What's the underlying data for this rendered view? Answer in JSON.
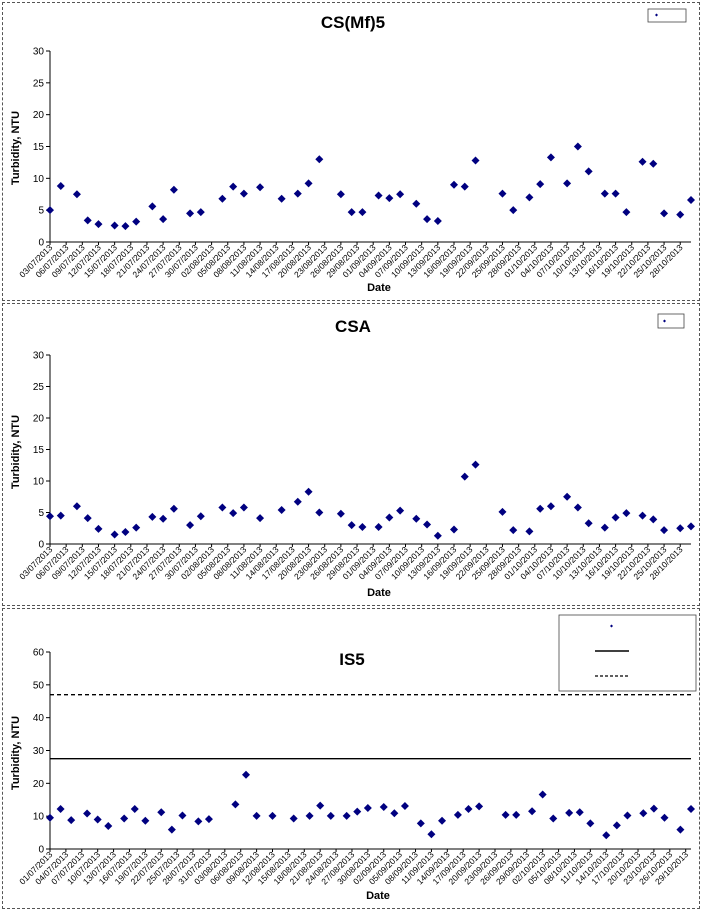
{
  "chart_data": [
    {
      "type": "scatter",
      "title": "CS(Mf)5",
      "xlabel": "Date",
      "ylabel": "Turbidity, NTU",
      "ylim": [
        0,
        30
      ],
      "yticks": [
        0,
        5,
        10,
        15,
        20,
        25,
        30
      ],
      "x_range": [
        "03/07/2013",
        "30/10/2013"
      ],
      "x_tick_labels": [
        "03/07/2013",
        "06/07/2013",
        "09/07/2013",
        "12/07/2013",
        "15/07/2013",
        "18/07/2013",
        "21/07/2013",
        "24/07/2013",
        "27/07/2013",
        "30/07/2013",
        "02/08/2013",
        "05/08/2013",
        "08/08/2013",
        "11/08/2013",
        "14/08/2013",
        "17/08/2013",
        "20/08/2013",
        "23/08/2013",
        "26/08/2013",
        "29/08/2013",
        "01/09/2013",
        "04/09/2013",
        "07/09/2013",
        "10/09/2013",
        "13/09/2013",
        "16/09/2013",
        "19/09/2013",
        "22/09/2013",
        "25/09/2013",
        "28/09/2013",
        "01/10/2013",
        "04/10/2013",
        "07/10/2013",
        "10/10/2013",
        "13/10/2013",
        "16/10/2013",
        "19/10/2013",
        "22/10/2013",
        "25/10/2013",
        "28/10/2013"
      ],
      "legend_position": "top-right",
      "grid": false,
      "marker_color": "#000080",
      "series": [
        {
          "marker": "diamond",
          "points": [
            [
              "03/07/2013",
              5.0
            ],
            [
              "05/07/2013",
              8.8
            ],
            [
              "08/07/2013",
              7.5
            ],
            [
              "10/07/2013",
              3.4
            ],
            [
              "12/07/2013",
              2.8
            ],
            [
              "15/07/2013",
              2.6
            ],
            [
              "17/07/2013",
              2.5
            ],
            [
              "19/07/2013",
              3.2
            ],
            [
              "22/07/2013",
              5.6
            ],
            [
              "24/07/2013",
              3.6
            ],
            [
              "26/07/2013",
              8.2
            ],
            [
              "29/07/2013",
              4.5
            ],
            [
              "31/07/2013",
              4.7
            ],
            [
              "04/08/2013",
              6.8
            ],
            [
              "06/08/2013",
              8.7
            ],
            [
              "08/08/2013",
              7.6
            ],
            [
              "11/08/2013",
              8.6
            ],
            [
              "15/08/2013",
              6.8
            ],
            [
              "18/08/2013",
              7.6
            ],
            [
              "20/08/2013",
              9.2
            ],
            [
              "22/08/2013",
              13.0
            ],
            [
              "26/08/2013",
              7.5
            ],
            [
              "28/08/2013",
              4.7
            ],
            [
              "30/08/2013",
              4.7
            ],
            [
              "02/09/2013",
              7.3
            ],
            [
              "04/09/2013",
              6.9
            ],
            [
              "06/09/2013",
              7.5
            ],
            [
              "09/09/2013",
              6.0
            ],
            [
              "11/09/2013",
              3.6
            ],
            [
              "13/09/2013",
              3.3
            ],
            [
              "16/09/2013",
              9.0
            ],
            [
              "18/09/2013",
              8.7
            ],
            [
              "20/09/2013",
              12.8
            ],
            [
              "25/09/2013",
              7.6
            ],
            [
              "27/09/2013",
              5.0
            ],
            [
              "30/09/2013",
              7.0
            ],
            [
              "02/10/2013",
              9.1
            ],
            [
              "04/10/2013",
              13.3
            ],
            [
              "07/10/2013",
              9.2
            ],
            [
              "09/10/2013",
              15.0
            ],
            [
              "11/10/2013",
              11.1
            ],
            [
              "14/10/2013",
              7.6
            ],
            [
              "16/10/2013",
              7.6
            ],
            [
              "18/10/2013",
              4.7
            ],
            [
              "21/10/2013",
              12.6
            ],
            [
              "23/10/2013",
              12.3
            ],
            [
              "25/10/2013",
              4.5
            ],
            [
              "28/10/2013",
              4.3
            ],
            [
              "30/10/2013",
              6.6
            ]
          ]
        }
      ]
    },
    {
      "type": "scatter",
      "title": "CSA",
      "xlabel": "Date",
      "ylabel": "Turbidity, NTU",
      "ylim": [
        0,
        30
      ],
      "yticks": [
        0,
        5,
        10,
        15,
        20,
        25,
        30
      ],
      "x_range": [
        "03/07/2013",
        "30/10/2013"
      ],
      "x_tick_labels": [
        "03/07/2013",
        "06/07/2013",
        "09/07/2013",
        "12/07/2013",
        "15/07/2013",
        "18/07/2013",
        "21/07/2013",
        "24/07/2013",
        "27/07/2013",
        "30/07/2013",
        "02/08/2013",
        "05/08/2013",
        "08/08/2013",
        "11/08/2013",
        "14/08/2013",
        "17/08/2013",
        "20/08/2013",
        "23/08/2013",
        "26/08/2013",
        "29/08/2013",
        "01/09/2013",
        "04/09/2013",
        "07/09/2013",
        "10/09/2013",
        "13/09/2013",
        "16/09/2013",
        "19/09/2013",
        "22/09/2013",
        "25/09/2013",
        "28/09/2013",
        "01/10/2013",
        "04/10/2013",
        "07/10/2013",
        "10/10/2013",
        "13/10/2013",
        "16/10/2013",
        "19/10/2013",
        "22/10/2013",
        "25/10/2013",
        "28/10/2013"
      ],
      "legend_position": "top-right",
      "grid": false,
      "marker_color": "#000080",
      "series": [
        {
          "marker": "diamond",
          "points": [
            [
              "03/07/2013",
              4.4
            ],
            [
              "05/07/2013",
              4.5
            ],
            [
              "08/07/2013",
              6.0
            ],
            [
              "10/07/2013",
              4.1
            ],
            [
              "12/07/2013",
              2.4
            ],
            [
              "15/07/2013",
              1.5
            ],
            [
              "17/07/2013",
              1.9
            ],
            [
              "19/07/2013",
              2.6
            ],
            [
              "22/07/2013",
              4.3
            ],
            [
              "24/07/2013",
              4.0
            ],
            [
              "26/07/2013",
              5.6
            ],
            [
              "29/07/2013",
              3.0
            ],
            [
              "31/07/2013",
              4.4
            ],
            [
              "04/08/2013",
              5.8
            ],
            [
              "06/08/2013",
              4.9
            ],
            [
              "08/08/2013",
              5.8
            ],
            [
              "11/08/2013",
              4.1
            ],
            [
              "15/08/2013",
              5.4
            ],
            [
              "18/08/2013",
              6.7
            ],
            [
              "20/08/2013",
              8.3
            ],
            [
              "22/08/2013",
              5.0
            ],
            [
              "26/08/2013",
              4.8
            ],
            [
              "28/08/2013",
              3.0
            ],
            [
              "30/08/2013",
              2.7
            ],
            [
              "02/09/2013",
              2.7
            ],
            [
              "04/09/2013",
              4.2
            ],
            [
              "06/09/2013",
              5.3
            ],
            [
              "09/09/2013",
              4.0
            ],
            [
              "11/09/2013",
              3.1
            ],
            [
              "13/09/2013",
              1.3
            ],
            [
              "16/09/2013",
              2.3
            ],
            [
              "18/09/2013",
              10.7
            ],
            [
              "20/09/2013",
              12.6
            ],
            [
              "25/09/2013",
              5.1
            ],
            [
              "27/09/2013",
              2.2
            ],
            [
              "30/09/2013",
              2.0
            ],
            [
              "02/10/2013",
              5.6
            ],
            [
              "04/10/2013",
              6.0
            ],
            [
              "07/10/2013",
              7.5
            ],
            [
              "09/10/2013",
              5.8
            ],
            [
              "11/10/2013",
              3.3
            ],
            [
              "14/10/2013",
              2.6
            ],
            [
              "16/10/2013",
              4.2
            ],
            [
              "18/10/2013",
              4.9
            ],
            [
              "21/10/2013",
              4.5
            ],
            [
              "23/10/2013",
              3.9
            ],
            [
              "25/10/2013",
              2.2
            ],
            [
              "28/10/2013",
              2.5
            ],
            [
              "30/10/2013",
              2.8
            ]
          ]
        }
      ]
    },
    {
      "type": "scatter",
      "title": "IS5",
      "xlabel": "Date",
      "ylabel": "Turbidity, NTU",
      "ylim": [
        0,
        60
      ],
      "yticks": [
        0,
        10,
        20,
        30,
        40,
        50,
        60
      ],
      "x_range": [
        "01/07/2013",
        "30/10/2013"
      ],
      "x_tick_labels": [
        "01/07/2013",
        "04/07/2013",
        "07/07/2013",
        "10/07/2013",
        "13/07/2013",
        "16/07/2013",
        "19/07/2013",
        "22/07/2013",
        "25/07/2013",
        "28/07/2013",
        "31/07/2013",
        "03/08/2013",
        "06/08/2013",
        "09/08/2013",
        "12/08/2013",
        "15/08/2013",
        "18/08/2013",
        "21/08/2013",
        "24/08/2013",
        "27/08/2013",
        "30/08/2013",
        "02/09/2013",
        "05/09/2013",
        "08/09/2013",
        "11/09/2013",
        "14/09/2013",
        "17/09/2013",
        "20/09/2013",
        "23/09/2013",
        "26/09/2013",
        "29/09/2013",
        "02/10/2013",
        "05/10/2013",
        "08/10/2013",
        "11/10/2013",
        "14/10/2013",
        "17/10/2013",
        "20/10/2013",
        "23/10/2013",
        "26/10/2013",
        "29/10/2013"
      ],
      "legend_position": "top-right",
      "grid": false,
      "marker_color": "#000080",
      "reference_lines": [
        {
          "y": 27.5,
          "style": "solid",
          "color": "#000000"
        },
        {
          "y": 47.0,
          "style": "dashed",
          "color": "#000000"
        }
      ],
      "series": [
        {
          "marker": "diamond",
          "points": [
            [
              "01/07/2013",
              9.5
            ],
            [
              "03/07/2013",
              12.2
            ],
            [
              "05/07/2013",
              8.8
            ],
            [
              "08/07/2013",
              10.8
            ],
            [
              "10/07/2013",
              9.0
            ],
            [
              "12/07/2013",
              7.0
            ],
            [
              "15/07/2013",
              9.3
            ],
            [
              "17/07/2013",
              12.2
            ],
            [
              "19/07/2013",
              8.6
            ],
            [
              "22/07/2013",
              11.2
            ],
            [
              "24/07/2013",
              5.9
            ],
            [
              "26/07/2013",
              10.2
            ],
            [
              "29/07/2013",
              8.4
            ],
            [
              "31/07/2013",
              9.1
            ],
            [
              "05/08/2013",
              13.6
            ],
            [
              "07/08/2013",
              22.6
            ],
            [
              "09/08/2013",
              10.1
            ],
            [
              "12/08/2013",
              10.1
            ],
            [
              "16/08/2013",
              9.3
            ],
            [
              "19/08/2013",
              10.1
            ],
            [
              "21/08/2013",
              13.2
            ],
            [
              "23/08/2013",
              10.1
            ],
            [
              "26/08/2013",
              10.1
            ],
            [
              "28/08/2013",
              11.4
            ],
            [
              "30/08/2013",
              12.5
            ],
            [
              "02/09/2013",
              12.8
            ],
            [
              "04/09/2013",
              10.9
            ],
            [
              "06/09/2013",
              13.1
            ],
            [
              "09/09/2013",
              7.8
            ],
            [
              "11/09/2013",
              4.5
            ],
            [
              "13/09/2013",
              8.6
            ],
            [
              "16/09/2013",
              10.4
            ],
            [
              "18/09/2013",
              12.2
            ],
            [
              "20/09/2013",
              13.0
            ],
            [
              "25/09/2013",
              10.4
            ],
            [
              "27/09/2013",
              10.4
            ],
            [
              "30/09/2013",
              11.5
            ],
            [
              "02/10/2013",
              16.6
            ],
            [
              "04/10/2013",
              9.3
            ],
            [
              "07/10/2013",
              11.0
            ],
            [
              "09/10/2013",
              11.2
            ],
            [
              "11/10/2013",
              7.8
            ],
            [
              "14/10/2013",
              4.2
            ],
            [
              "16/10/2013",
              7.2
            ],
            [
              "18/10/2013",
              10.2
            ],
            [
              "21/10/2013",
              10.9
            ],
            [
              "23/10/2013",
              12.3
            ],
            [
              "25/10/2013",
              9.5
            ],
            [
              "28/10/2013",
              5.9
            ],
            [
              "30/10/2013",
              12.2
            ]
          ]
        }
      ]
    }
  ]
}
